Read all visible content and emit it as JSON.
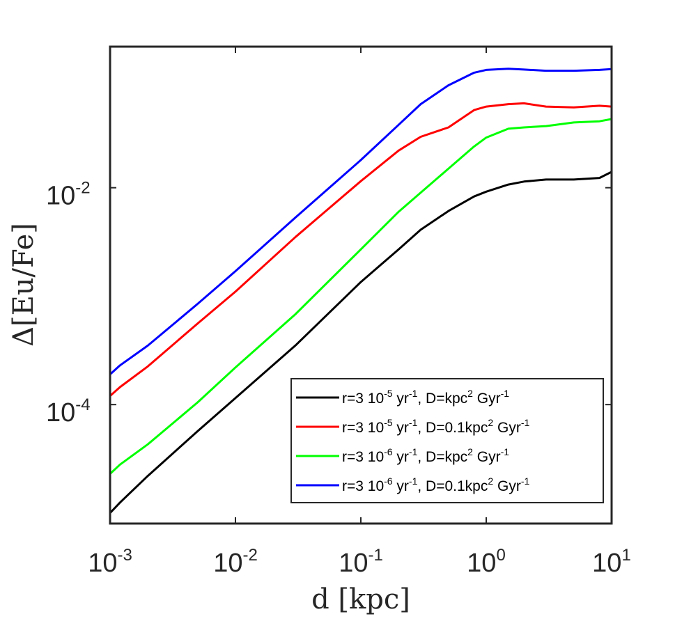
{
  "chart_data": {
    "type": "line",
    "xscale": "log",
    "yscale": "log",
    "xlim": [
      0.001,
      10
    ],
    "ylim": [
      8e-06,
      0.2
    ],
    "xlabel": "d [kpc]",
    "ylabel": "Δ[Eu/Fe]",
    "xticks": [
      {
        "value": 0.001,
        "base": "10",
        "exp": "-3"
      },
      {
        "value": 0.01,
        "base": "10",
        "exp": "-2"
      },
      {
        "value": 0.1,
        "base": "10",
        "exp": "-1"
      },
      {
        "value": 1,
        "base": "10",
        "exp": "0"
      },
      {
        "value": 10,
        "base": "10",
        "exp": "1"
      }
    ],
    "yticks": [
      {
        "value": 0.0001,
        "base": "10",
        "exp": "-4"
      },
      {
        "value": 0.01,
        "base": "10",
        "exp": "-2"
      }
    ],
    "series": [
      {
        "name": "r=3 10-5 yr-1, D=kpc2 Gyr-1",
        "legend_parts": [
          "r=3 10",
          "-5",
          " yr",
          "-1",
          ", D=kpc",
          "2",
          " Gyr",
          "-1"
        ],
        "color": "#000000",
        "points": [
          [
            0.001,
            1e-05
          ],
          [
            0.0012,
            1.25e-05
          ],
          [
            0.002,
            2.2e-05
          ],
          [
            0.005,
            5.7e-05
          ],
          [
            0.01,
            0.000115
          ],
          [
            0.03,
            0.00035
          ],
          [
            0.1,
            0.00135
          ],
          [
            0.2,
            0.0027
          ],
          [
            0.3,
            0.0041
          ],
          [
            0.5,
            0.0061
          ],
          [
            0.8,
            0.0083
          ],
          [
            1.0,
            0.0092
          ],
          [
            1.5,
            0.0107
          ],
          [
            2.0,
            0.0114
          ],
          [
            3.0,
            0.0119
          ],
          [
            5.0,
            0.0119
          ],
          [
            8.0,
            0.0123
          ],
          [
            10.0,
            0.014
          ]
        ]
      },
      {
        "name": "r=3 10-5 yr-1, D=0.1kpc2 Gyr-1",
        "legend_parts": [
          "r=3 10",
          "-5",
          " yr",
          "-1",
          ", D=0.1kpc",
          "2",
          " Gyr",
          "-1"
        ],
        "color": "#ff0000",
        "points": [
          [
            0.001,
            0.00012
          ],
          [
            0.0012,
            0.000145
          ],
          [
            0.002,
            0.000225
          ],
          [
            0.005,
            0.00056
          ],
          [
            0.01,
            0.0011
          ],
          [
            0.03,
            0.0035
          ],
          [
            0.05,
            0.0058
          ],
          [
            0.1,
            0.0115
          ],
          [
            0.2,
            0.022
          ],
          [
            0.3,
            0.0295
          ],
          [
            0.5,
            0.036
          ],
          [
            0.8,
            0.052
          ],
          [
            1.0,
            0.056
          ],
          [
            1.5,
            0.059
          ],
          [
            2.0,
            0.06
          ],
          [
            3.0,
            0.056
          ],
          [
            5.0,
            0.055
          ],
          [
            8.0,
            0.057
          ],
          [
            10.0,
            0.056
          ]
        ]
      },
      {
        "name": "r=3 10-6 yr-1, D=kpc2 Gyr-1",
        "legend_parts": [
          "r=3 10",
          "-6",
          " yr",
          "-1",
          ", D=kpc",
          "2",
          " Gyr",
          "-1"
        ],
        "color": "#00ff00",
        "points": [
          [
            0.001,
            2.3e-05
          ],
          [
            0.0012,
            2.8e-05
          ],
          [
            0.002,
            4.3e-05
          ],
          [
            0.005,
            0.000105
          ],
          [
            0.01,
            0.00022
          ],
          [
            0.03,
            0.00068
          ],
          [
            0.1,
            0.0027
          ],
          [
            0.2,
            0.006
          ],
          [
            0.3,
            0.009
          ],
          [
            0.5,
            0.015
          ],
          [
            0.8,
            0.024
          ],
          [
            1.0,
            0.029
          ],
          [
            1.5,
            0.035
          ],
          [
            2.0,
            0.036
          ],
          [
            3.0,
            0.037
          ],
          [
            5.0,
            0.04
          ],
          [
            8.0,
            0.041
          ],
          [
            10.0,
            0.043
          ]
        ]
      },
      {
        "name": "r=3 10-6 yr-1, D=0.1kpc2 Gyr-1",
        "legend_parts": [
          "r=3 10",
          "-6",
          " yr",
          "-1",
          ", D=0.1kpc",
          "2",
          " Gyr",
          "-1"
        ],
        "color": "#0000ff",
        "points": [
          [
            0.001,
            0.00019
          ],
          [
            0.0012,
            0.00023
          ],
          [
            0.002,
            0.00035
          ],
          [
            0.005,
            0.00085
          ],
          [
            0.01,
            0.0017
          ],
          [
            0.03,
            0.0053
          ],
          [
            0.1,
            0.018
          ],
          [
            0.2,
            0.038
          ],
          [
            0.3,
            0.059
          ],
          [
            0.5,
            0.088
          ],
          [
            0.8,
            0.115
          ],
          [
            1.0,
            0.122
          ],
          [
            1.5,
            0.125
          ],
          [
            2.0,
            0.123
          ],
          [
            3.0,
            0.12
          ],
          [
            5.0,
            0.12
          ],
          [
            8.0,
            0.122
          ],
          [
            10.0,
            0.124
          ]
        ]
      }
    ],
    "legend": {
      "position": "bottom-right"
    },
    "grid": false
  }
}
